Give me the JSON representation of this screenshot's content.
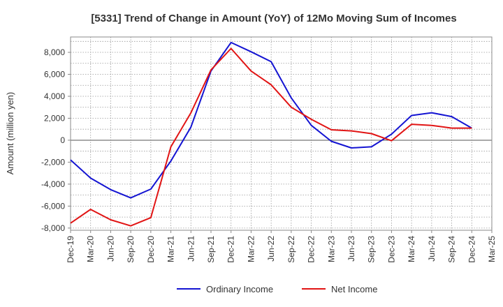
{
  "chart_data": {
    "type": "line",
    "title": "[5331]  Trend of Change in Amount (YoY) of 12Mo Moving Sum of Incomes",
    "xlabel": "",
    "ylabel": "Amount (million yen)",
    "categories": [
      "Dec-19",
      "Mar-20",
      "Jun-20",
      "Sep-20",
      "Dec-20",
      "Mar-21",
      "Jun-21",
      "Sep-21",
      "Dec-21",
      "Mar-22",
      "Jun-22",
      "Sep-22",
      "Dec-22",
      "Mar-23",
      "Jun-23",
      "Sep-23",
      "Dec-23",
      "Mar-24",
      "Jun-24",
      "Sep-24",
      "Dec-24",
      "Mar-25"
    ],
    "ylim": [
      -8200,
      9400
    ],
    "yticks": [
      -8000,
      -6000,
      -4000,
      -2000,
      0,
      2000,
      4000,
      6000,
      8000
    ],
    "ytick_labels": [
      "-8,000",
      "-6,000",
      "-4,000",
      "-2,000",
      "0",
      "2,000",
      "4,000",
      "6,000",
      "8,000"
    ],
    "grid": true,
    "legend_position": "bottom",
    "series": [
      {
        "name": "Ordinary Income",
        "color": "#1414d2",
        "values": [
          -1800,
          -3450,
          -4500,
          -5250,
          -4450,
          -1900,
          1200,
          6300,
          8900,
          8050,
          7150,
          3850,
          1350,
          -100,
          -700,
          -600,
          550,
          2250,
          2500,
          2150,
          1100,
          null
        ]
      },
      {
        "name": "Net Income",
        "color": "#e11414",
        "values": [
          -7550,
          -6300,
          -7250,
          -7800,
          -7050,
          -600,
          2500,
          6400,
          8350,
          6300,
          5050,
          3000,
          1900,
          950,
          850,
          600,
          -50,
          1450,
          1350,
          1100,
          1100,
          null
        ]
      }
    ]
  }
}
